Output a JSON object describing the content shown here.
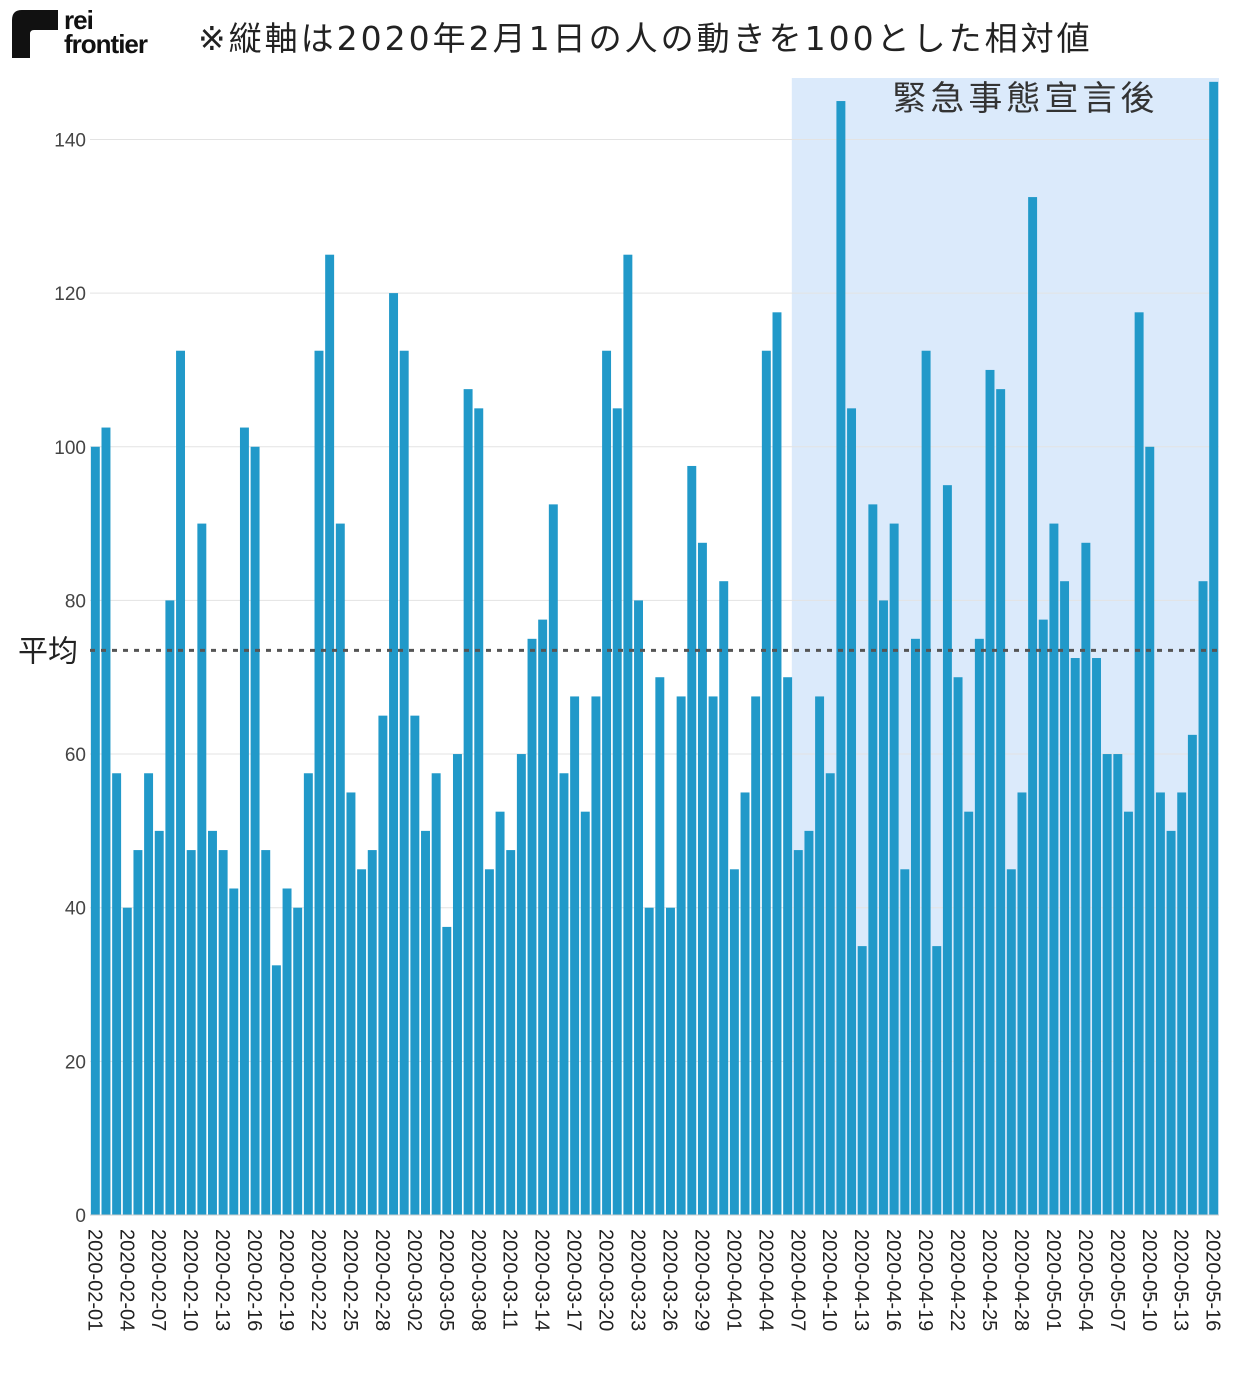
{
  "logo": {
    "line1": "rei",
    "line2": "frontier"
  },
  "note": "※縦軸は2020年2月1日の人の動きを100とした相対値",
  "region_label": "緊急事態宣言後",
  "average_label": "平均",
  "colors": {
    "bar": "#2199c9",
    "region": "#dbeafb",
    "average_line": "#555555",
    "grid": "#e3e3e3"
  },
  "chart_data": {
    "type": "bar",
    "title": "",
    "xlabel": "",
    "ylabel": "",
    "ylim": [
      0,
      148
    ],
    "yticks": [
      0,
      20,
      40,
      60,
      80,
      100,
      120,
      140
    ],
    "grid": true,
    "average": 73.5,
    "highlight_region": {
      "label": "緊急事態宣言後",
      "start": "2020-04-07",
      "end": "2020-05-16"
    },
    "categories": [
      "2020-02-01",
      "2020-02-02",
      "2020-02-03",
      "2020-02-04",
      "2020-02-05",
      "2020-02-06",
      "2020-02-07",
      "2020-02-08",
      "2020-02-09",
      "2020-02-10",
      "2020-02-11",
      "2020-02-12",
      "2020-02-13",
      "2020-02-14",
      "2020-02-15",
      "2020-02-16",
      "2020-02-17",
      "2020-02-18",
      "2020-02-19",
      "2020-02-20",
      "2020-02-21",
      "2020-02-22",
      "2020-02-23",
      "2020-02-24",
      "2020-02-25",
      "2020-02-26",
      "2020-02-27",
      "2020-02-28",
      "2020-02-29",
      "2020-03-01",
      "2020-03-02",
      "2020-03-03",
      "2020-03-04",
      "2020-03-05",
      "2020-03-06",
      "2020-03-07",
      "2020-03-08",
      "2020-03-09",
      "2020-03-10",
      "2020-03-11",
      "2020-03-12",
      "2020-03-13",
      "2020-03-14",
      "2020-03-15",
      "2020-03-16",
      "2020-03-17",
      "2020-03-18",
      "2020-03-19",
      "2020-03-20",
      "2020-03-21",
      "2020-03-22",
      "2020-03-23",
      "2020-03-24",
      "2020-03-25",
      "2020-03-26",
      "2020-03-27",
      "2020-03-28",
      "2020-03-29",
      "2020-03-30",
      "2020-03-31",
      "2020-04-01",
      "2020-04-02",
      "2020-04-03",
      "2020-04-04",
      "2020-04-05",
      "2020-04-06",
      "2020-04-07",
      "2020-04-08",
      "2020-04-09",
      "2020-04-10",
      "2020-04-11",
      "2020-04-12",
      "2020-04-13",
      "2020-04-14",
      "2020-04-15",
      "2020-04-16",
      "2020-04-17",
      "2020-04-18",
      "2020-04-19",
      "2020-04-20",
      "2020-04-21",
      "2020-04-22",
      "2020-04-23",
      "2020-04-24",
      "2020-04-25",
      "2020-04-26",
      "2020-04-27",
      "2020-04-28",
      "2020-04-29",
      "2020-04-30",
      "2020-05-01",
      "2020-05-02",
      "2020-05-03",
      "2020-05-04",
      "2020-05-05",
      "2020-05-06",
      "2020-05-07",
      "2020-05-08",
      "2020-05-09",
      "2020-05-10",
      "2020-05-11",
      "2020-05-12",
      "2020-05-13",
      "2020-05-14",
      "2020-05-15",
      "2020-05-16"
    ],
    "x_tick_labels": [
      "2020-02-01",
      "2020-02-04",
      "2020-02-07",
      "2020-02-10",
      "2020-02-13",
      "2020-02-16",
      "2020-02-19",
      "2020-02-22",
      "2020-02-25",
      "2020-02-28",
      "2020-03-02",
      "2020-03-05",
      "2020-03-08",
      "2020-03-11",
      "2020-03-14",
      "2020-03-17",
      "2020-03-20",
      "2020-03-23",
      "2020-03-26",
      "2020-03-29",
      "2020-04-01",
      "2020-04-04",
      "2020-04-07",
      "2020-04-10",
      "2020-04-13",
      "2020-04-16",
      "2020-04-19",
      "2020-04-22",
      "2020-04-25",
      "2020-04-28",
      "2020-05-01",
      "2020-05-04",
      "2020-05-07",
      "2020-05-10",
      "2020-05-13",
      "2020-05-16"
    ],
    "values": [
      100,
      102.5,
      57.5,
      40,
      47.5,
      57.5,
      50,
      80,
      112.5,
      47.5,
      90,
      50,
      47.5,
      42.5,
      102.5,
      100,
      47.5,
      32.5,
      42.5,
      40,
      57.5,
      112.5,
      125,
      90,
      55,
      45,
      47.5,
      65,
      120,
      112.5,
      65,
      50,
      57.5,
      37.5,
      60,
      107.5,
      105,
      45,
      52.5,
      47.5,
      60,
      75,
      77.5,
      92.5,
      57.5,
      67.5,
      52.5,
      67.5,
      112.5,
      105,
      125,
      80,
      40,
      70,
      40,
      67.5,
      97.5,
      87.5,
      67.5,
      82.5,
      45,
      55,
      67.5,
      112.5,
      117.5,
      70,
      47.5,
      50,
      67.5,
      57.5,
      145,
      105,
      35,
      92.5,
      80,
      90,
      45,
      75,
      112.5,
      35,
      95,
      70,
      52.5,
      75,
      110,
      107.5,
      45,
      55,
      132.5,
      77.5,
      90,
      82.5,
      72.5,
      87.5,
      72.5,
      60,
      60,
      52.5,
      117.5,
      100,
      55,
      50,
      55,
      62.5,
      82.5,
      147.5
    ]
  }
}
